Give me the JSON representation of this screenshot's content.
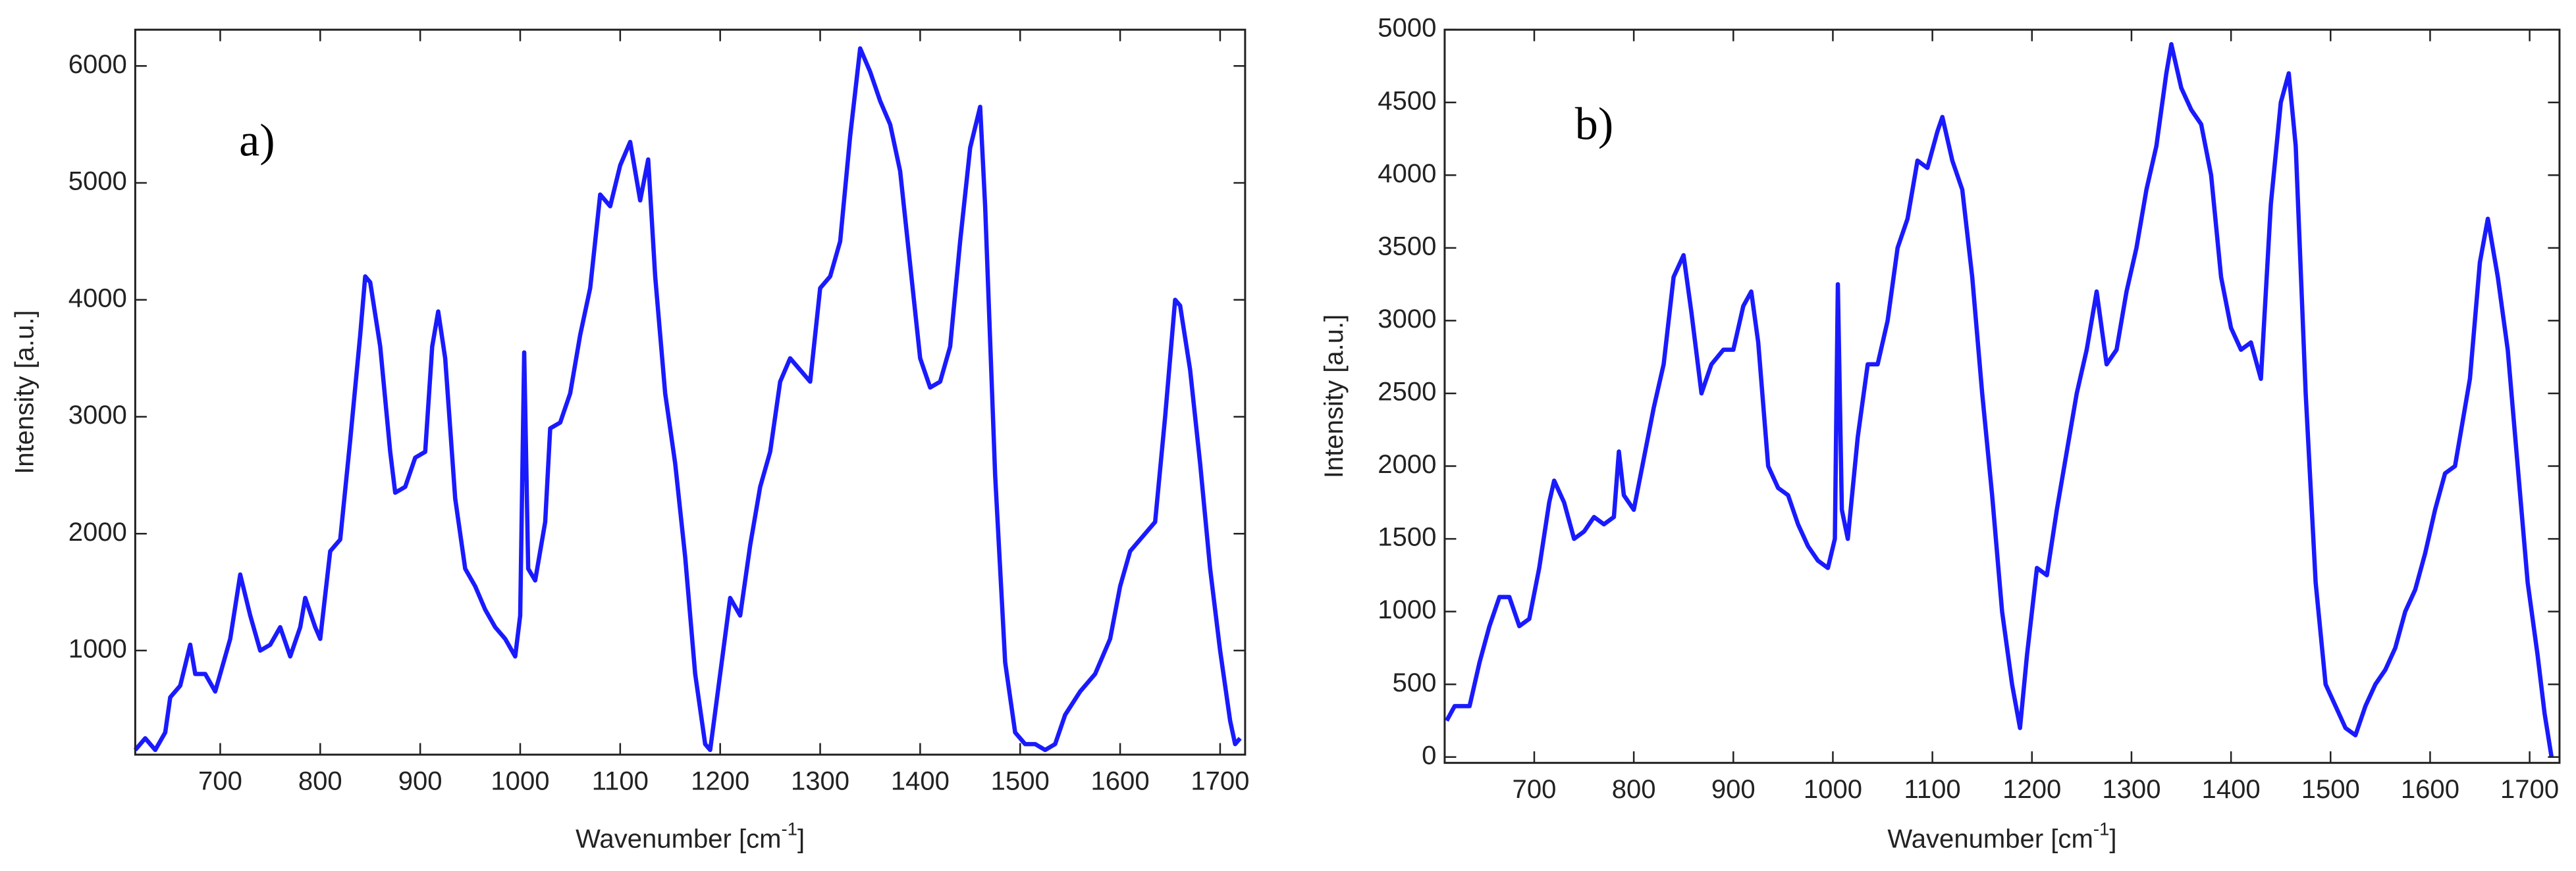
{
  "chart_data": [
    {
      "type": "line",
      "annotation": "a)",
      "ylabel": "Intensity [a.u.]",
      "xlabel": [
        "Wavenumber [cm",
        "-1",
        "]"
      ],
      "xlim": [
        615,
        1725
      ],
      "ylim": [
        110,
        6310
      ],
      "xticks": [
        700,
        800,
        900,
        1000,
        1100,
        1200,
        1300,
        1400,
        1500,
        1600,
        1700
      ],
      "yticks": [
        1000,
        2000,
        3000,
        4000,
        5000,
        6000
      ],
      "x": [
        615,
        625,
        635,
        645,
        650,
        660,
        670,
        675,
        685,
        695,
        700,
        710,
        720,
        730,
        740,
        750,
        760,
        770,
        780,
        785,
        795,
        800,
        810,
        820,
        830,
        840,
        845,
        850,
        860,
        870,
        875,
        885,
        895,
        905,
        912,
        918,
        925,
        935,
        945,
        955,
        965,
        975,
        985,
        995,
        1000,
        1004,
        1008,
        1015,
        1025,
        1030,
        1040,
        1050,
        1060,
        1070,
        1080,
        1090,
        1100,
        1110,
        1120,
        1128,
        1135,
        1145,
        1155,
        1165,
        1175,
        1185,
        1190,
        1200,
        1210,
        1220,
        1230,
        1240,
        1250,
        1260,
        1270,
        1280,
        1290,
        1300,
        1310,
        1320,
        1330,
        1340,
        1350,
        1360,
        1370,
        1380,
        1390,
        1400,
        1410,
        1420,
        1430,
        1440,
        1450,
        1460,
        1465,
        1475,
        1485,
        1495,
        1505,
        1515,
        1525,
        1535,
        1545,
        1560,
        1575,
        1590,
        1600,
        1610,
        1625,
        1635,
        1645,
        1655,
        1660,
        1670,
        1680,
        1690,
        1700,
        1710,
        1715,
        1720
      ],
      "series": [
        {
          "color": "#1a1aff",
          "values": [
            150,
            250,
            150,
            300,
            600,
            700,
            1050,
            800,
            800,
            650,
            800,
            1100,
            1650,
            1300,
            1000,
            1050,
            1200,
            950,
            1200,
            1450,
            1200,
            1100,
            1850,
            1950,
            2800,
            3700,
            4200,
            4150,
            3600,
            2700,
            2350,
            2400,
            2650,
            2700,
            3600,
            3900,
            3500,
            2300,
            1700,
            1550,
            1350,
            1200,
            1100,
            950,
            1300,
            3550,
            1700,
            1600,
            2100,
            2900,
            2950,
            3200,
            3700,
            4100,
            4900,
            4800,
            5150,
            5350,
            4850,
            5200,
            4200,
            3200,
            2600,
            1800,
            800,
            200,
            150,
            800,
            1450,
            1300,
            1900,
            2400,
            2700,
            3300,
            3500,
            3400,
            3300,
            4100,
            4200,
            4500,
            5400,
            6150,
            5950,
            5700,
            5500,
            5100,
            4300,
            3500,
            3250,
            3300,
            3600,
            4500,
            5300,
            5650,
            4800,
            2500,
            900,
            300,
            200,
            200,
            150,
            200,
            450,
            650,
            800,
            1100,
            1550,
            1850,
            2000,
            2100,
            3000,
            4000,
            3950,
            3400,
            2600,
            1700,
            1000,
            400,
            200,
            250
          ]
        }
      ]
    },
    {
      "type": "line",
      "annotation": "b)",
      "ylabel": "Intensity [a.u.]",
      "xlabel": [
        "Wavenumber [cm",
        "-1",
        "]"
      ],
      "xlim": [
        610,
        1730
      ],
      "ylim": [
        -40,
        5000
      ],
      "xticks": [
        700,
        800,
        900,
        1000,
        1100,
        1200,
        1300,
        1400,
        1500,
        1600,
        1700
      ],
      "yticks": [
        0,
        500,
        1000,
        1500,
        2000,
        2500,
        3000,
        3500,
        4000,
        4500,
        5000
      ],
      "x": [
        612,
        620,
        635,
        645,
        655,
        665,
        675,
        685,
        695,
        705,
        715,
        720,
        730,
        740,
        750,
        760,
        770,
        780,
        785,
        790,
        800,
        810,
        820,
        830,
        840,
        850,
        858,
        868,
        878,
        890,
        900,
        910,
        918,
        925,
        935,
        945,
        955,
        965,
        975,
        985,
        995,
        1002,
        1005,
        1009,
        1015,
        1025,
        1035,
        1045,
        1055,
        1065,
        1075,
        1085,
        1095,
        1105,
        1110,
        1120,
        1130,
        1140,
        1150,
        1160,
        1170,
        1180,
        1188,
        1195,
        1205,
        1215,
        1225,
        1235,
        1245,
        1255,
        1265,
        1275,
        1285,
        1295,
        1305,
        1315,
        1325,
        1335,
        1340,
        1350,
        1360,
        1370,
        1380,
        1390,
        1400,
        1410,
        1420,
        1430,
        1440,
        1450,
        1458,
        1465,
        1475,
        1485,
        1495,
        1505,
        1515,
        1525,
        1535,
        1545,
        1555,
        1565,
        1575,
        1585,
        1595,
        1605,
        1615,
        1625,
        1640,
        1650,
        1658,
        1668,
        1678,
        1688,
        1698,
        1708,
        1715,
        1722
      ],
      "series": [
        {
          "color": "#1a1aff",
          "values": [
            250,
            350,
            350,
            650,
            900,
            1100,
            1100,
            900,
            950,
            1300,
            1750,
            1900,
            1750,
            1500,
            1550,
            1650,
            1600,
            1650,
            2100,
            1800,
            1700,
            2050,
            2400,
            2700,
            3300,
            3450,
            3050,
            2500,
            2700,
            2800,
            2800,
            3100,
            3200,
            2850,
            2000,
            1850,
            1800,
            1600,
            1450,
            1350,
            1300,
            1500,
            3250,
            1700,
            1500,
            2200,
            2700,
            2700,
            3000,
            3500,
            3700,
            4100,
            4050,
            4300,
            4400,
            4100,
            3900,
            3300,
            2500,
            1800,
            1000,
            500,
            200,
            700,
            1300,
            1250,
            1700,
            2100,
            2500,
            2800,
            3200,
            2700,
            2800,
            3200,
            3500,
            3900,
            4200,
            4700,
            4900,
            4600,
            4450,
            4350,
            4000,
            3300,
            2950,
            2800,
            2850,
            2600,
            3800,
            4500,
            4700,
            4200,
            2500,
            1200,
            500,
            350,
            200,
            150,
            350,
            500,
            600,
            750,
            1000,
            1150,
            1400,
            1700,
            1950,
            2000,
            2600,
            3400,
            3700,
            3300,
            2800,
            2000,
            1200,
            700,
            300,
            0
          ]
        }
      ]
    }
  ]
}
